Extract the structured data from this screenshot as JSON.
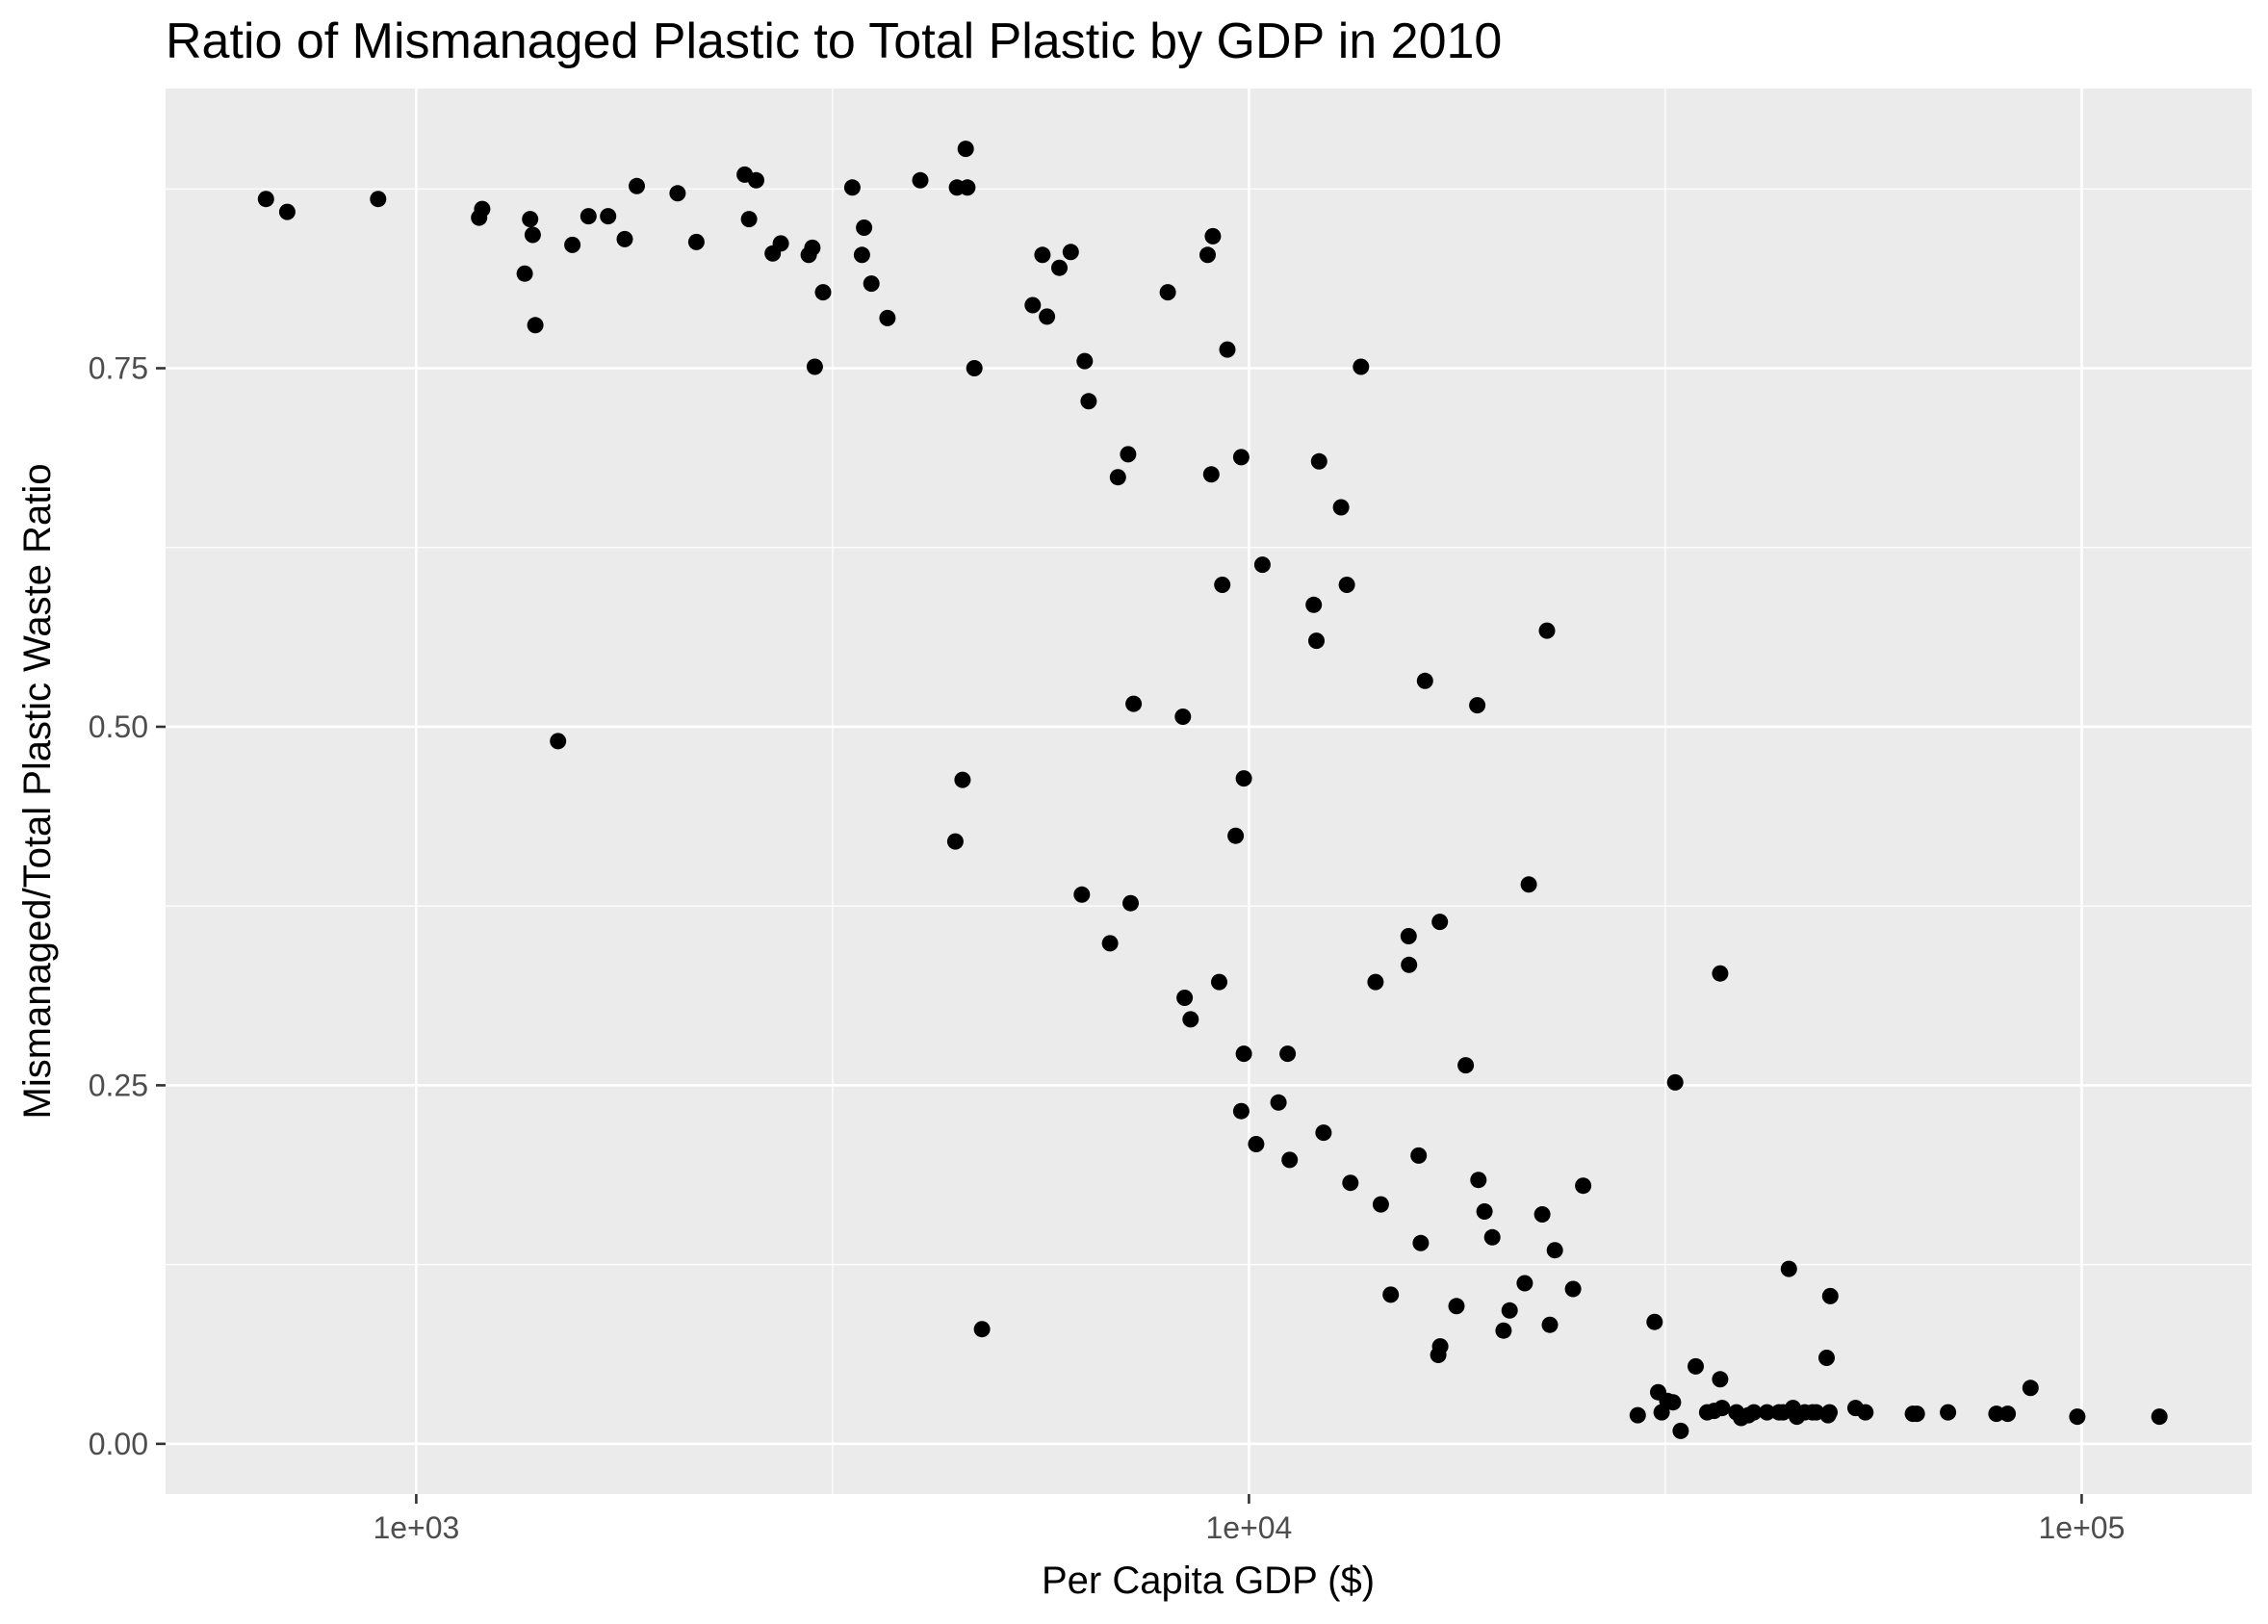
{
  "chart_data": {
    "type": "scatter",
    "title": "Ratio of Mismanaged Plastic to Total Plastic by GDP in 2010",
    "xlabel": "Per Capita GDP ($)",
    "ylabel": "Mismanaged/Total Plastic Waste Ratio",
    "x_scale": "log10",
    "xlim": [
      500,
      160000
    ],
    "ylim": [
      -0.035,
      0.945
    ],
    "x_ticks": [
      {
        "value": 1000,
        "label": "1e+03"
      },
      {
        "value": 10000,
        "label": "1e+04"
      },
      {
        "value": 100000,
        "label": "1e+05"
      }
    ],
    "y_ticks": [
      {
        "value": 0.0,
        "label": "0.00"
      },
      {
        "value": 0.25,
        "label": "0.25"
      },
      {
        "value": 0.5,
        "label": "0.50"
      },
      {
        "value": 0.75,
        "label": "0.75"
      }
    ],
    "grid": true,
    "background": "#ebebeb",
    "point_color": "#000000",
    "points": [
      [
        660,
        0.868
      ],
      [
        700,
        0.859
      ],
      [
        900,
        0.868
      ],
      [
        1190,
        0.855
      ],
      [
        1200,
        0.861
      ],
      [
        1350,
        0.816
      ],
      [
        1370,
        0.854
      ],
      [
        1380,
        0.843
      ],
      [
        1390,
        0.78
      ],
      [
        1480,
        0.49
      ],
      [
        1540,
        0.836
      ],
      [
        1610,
        0.856
      ],
      [
        1700,
        0.856
      ],
      [
        1780,
        0.84
      ],
      [
        1840,
        0.877
      ],
      [
        2060,
        0.872
      ],
      [
        2170,
        0.838
      ],
      [
        2480,
        0.885
      ],
      [
        2510,
        0.854
      ],
      [
        2560,
        0.881
      ],
      [
        2680,
        0.83
      ],
      [
        2740,
        0.837
      ],
      [
        2960,
        0.829
      ],
      [
        2990,
        0.834
      ],
      [
        3010,
        0.751
      ],
      [
        3080,
        0.803
      ],
      [
        3340,
        0.876
      ],
      [
        3430,
        0.829
      ],
      [
        3450,
        0.848
      ],
      [
        3520,
        0.809
      ],
      [
        3680,
        0.785
      ],
      [
        4030,
        0.881
      ],
      [
        4460,
        0.876
      ],
      [
        4590,
        0.876
      ],
      [
        4570,
        0.903
      ],
      [
        4680,
        0.75
      ],
      [
        4440,
        0.42
      ],
      [
        4530,
        0.463
      ],
      [
        4780,
        0.08
      ],
      [
        5500,
        0.794
      ],
      [
        5650,
        0.829
      ],
      [
        5720,
        0.786
      ],
      [
        5920,
        0.82
      ],
      [
        6110,
        0.831
      ],
      [
        6350,
        0.755
      ],
      [
        6420,
        0.727
      ],
      [
        6300,
        0.383
      ],
      [
        6810,
        0.349
      ],
      [
        6960,
        0.674
      ],
      [
        7160,
        0.69
      ],
      [
        7270,
        0.516
      ],
      [
        7210,
        0.377
      ],
      [
        7990,
        0.803
      ],
      [
        8330,
        0.507
      ],
      [
        8370,
        0.311
      ],
      [
        8510,
        0.296
      ],
      [
        8920,
        0.829
      ],
      [
        9010,
        0.676
      ],
      [
        9050,
        0.842
      ],
      [
        9210,
        0.322
      ],
      [
        9290,
        0.599
      ],
      [
        9420,
        0.763
      ],
      [
        9640,
        0.424
      ],
      [
        9790,
        0.688
      ],
      [
        9860,
        0.464
      ],
      [
        9860,
        0.272
      ],
      [
        9790,
        0.232
      ],
      [
        10200,
        0.209
      ],
      [
        10380,
        0.613
      ],
      [
        10850,
        0.238
      ],
      [
        11130,
        0.272
      ],
      [
        11190,
        0.198
      ],
      [
        11960,
        0.585
      ],
      [
        12050,
        0.56
      ],
      [
        12140,
        0.685
      ],
      [
        12290,
        0.217
      ],
      [
        12900,
        0.653
      ],
      [
        13110,
        0.599
      ],
      [
        13240,
        0.182
      ],
      [
        13630,
        0.751
      ],
      [
        14190,
        0.322
      ],
      [
        14400,
        0.167
      ],
      [
        14800,
        0.104
      ],
      [
        15550,
        0.354
      ],
      [
        15570,
        0.334
      ],
      [
        15990,
        0.201
      ],
      [
        16080,
        0.14
      ],
      [
        16270,
        0.532
      ],
      [
        16880,
        0.062
      ],
      [
        16970,
        0.068
      ],
      [
        16950,
        0.364
      ],
      [
        17750,
        0.096
      ],
      [
        18210,
        0.264
      ],
      [
        18800,
        0.515
      ],
      [
        18860,
        0.184
      ],
      [
        19180,
        0.162
      ],
      [
        19600,
        0.144
      ],
      [
        20220,
        0.079
      ],
      [
        20560,
        0.093
      ],
      [
        21440,
        0.112
      ],
      [
        21680,
        0.39
      ],
      [
        22500,
        0.16
      ],
      [
        22800,
        0.567
      ],
      [
        22980,
        0.083
      ],
      [
        23300,
        0.135
      ],
      [
        24500,
        0.108
      ],
      [
        25200,
        0.18
      ],
      [
        29300,
        0.02
      ],
      [
        30700,
        0.085
      ],
      [
        31000,
        0.036
      ],
      [
        31300,
        0.022
      ],
      [
        31800,
        0.03
      ],
      [
        32300,
        0.029
      ],
      [
        32500,
        0.252
      ],
      [
        33000,
        0.009
      ],
      [
        34400,
        0.054
      ],
      [
        35500,
        0.022
      ],
      [
        36200,
        0.023
      ],
      [
        36800,
        0.045
      ],
      [
        36800,
        0.328
      ],
      [
        37000,
        0.025
      ],
      [
        38500,
        0.022
      ],
      [
        39000,
        0.018
      ],
      [
        39800,
        0.02
      ],
      [
        40400,
        0.022
      ],
      [
        41900,
        0.022
      ],
      [
        43300,
        0.022
      ],
      [
        43800,
        0.022
      ],
      [
        44500,
        0.122
      ],
      [
        45000,
        0.025
      ],
      [
        45500,
        0.019
      ],
      [
        46500,
        0.022
      ],
      [
        47500,
        0.022
      ],
      [
        48000,
        0.022
      ],
      [
        49400,
        0.06
      ],
      [
        49800,
        0.022
      ],
      [
        49900,
        0.103
      ],
      [
        49600,
        0.02
      ],
      [
        53500,
        0.025
      ],
      [
        55000,
        0.022
      ],
      [
        62700,
        0.021
      ],
      [
        63400,
        0.021
      ],
      [
        69100,
        0.022
      ],
      [
        79000,
        0.021
      ],
      [
        81500,
        0.021
      ],
      [
        86800,
        0.039
      ],
      [
        98800,
        0.019
      ],
      [
        124000,
        0.019
      ]
    ]
  }
}
